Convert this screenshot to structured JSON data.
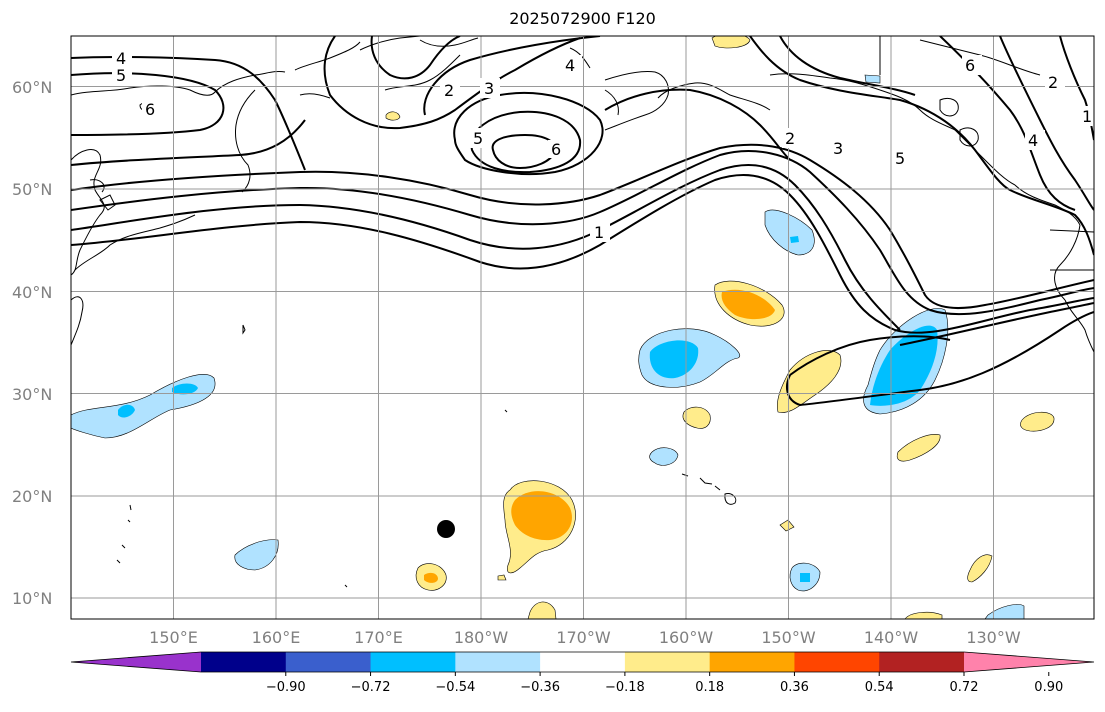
{
  "title": "2025072900 F120",
  "map": {
    "lat_labels": [
      "60°N",
      "50°N",
      "40°N",
      "30°N",
      "20°N",
      "10°N"
    ],
    "lon_labels": [
      "150°E",
      "160°E",
      "170°E",
      "180°W",
      "170°W",
      "160°W",
      "150°W",
      "140°W",
      "130°W"
    ],
    "contour_labels": [
      "4",
      "5",
      "6",
      "2",
      "3",
      "4",
      "5",
      "6",
      "1",
      "2",
      "3",
      "5",
      "6",
      "2",
      "4",
      "1"
    ],
    "shading_colors": [
      "#ffec8b",
      "#ffa500",
      "#b0e2ff",
      "#00bfff"
    ],
    "marker": "black-dot"
  },
  "colorbar": {
    "ticks": [
      "−0.90",
      "−0.72",
      "−0.54",
      "−0.36",
      "−0.18",
      "0.18",
      "0.36",
      "0.54",
      "0.72",
      "0.90"
    ],
    "colors": [
      "#9932cc",
      "#00008b",
      "#3a5fcd",
      "#00bfff",
      "#b0e2ff",
      "#ffffff",
      "#ffec8b",
      "#ffa500",
      "#ff4500",
      "#b22222",
      "#ff82ab"
    ]
  }
}
